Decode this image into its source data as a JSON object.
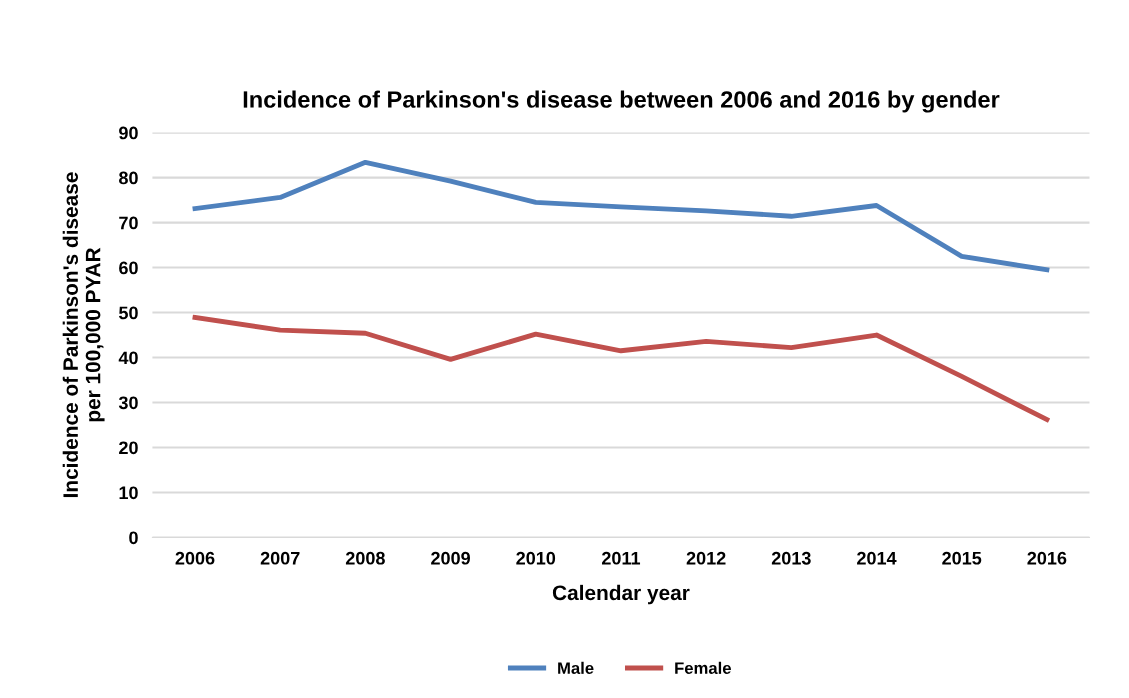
{
  "chart_data": {
    "type": "line",
    "title": "Incidence of Parkinson's disease between 2006 and 2016 by gender",
    "xlabel": "Calendar year",
    "ylabel": "Incidence of Parkinson's disease\nper 100,000 PYAR",
    "categories": [
      "2006",
      "2007",
      "2008",
      "2009",
      "2010",
      "2011",
      "2012",
      "2013",
      "2014",
      "2015",
      "2016"
    ],
    "series": [
      {
        "name": "Male",
        "color": "#4f81bd",
        "values": [
          73.1,
          75.6,
          83.4,
          79.2,
          74.5,
          73.5,
          72.6,
          71.4,
          73.8,
          62.5,
          59.5
        ]
      },
      {
        "name": "Female",
        "color": "#c0504d",
        "values": [
          48.9,
          46.1,
          45.4,
          39.6,
          45.2,
          41.5,
          43.6,
          42.2,
          45.0,
          35.8,
          26.2
        ]
      }
    ],
    "ylim": [
      0,
      90
    ],
    "yticks": [
      0,
      10,
      20,
      30,
      40,
      50,
      60,
      70,
      80,
      90
    ],
    "grid": "y",
    "legend": "bottom",
    "marker": "none",
    "line_style": "solid"
  }
}
